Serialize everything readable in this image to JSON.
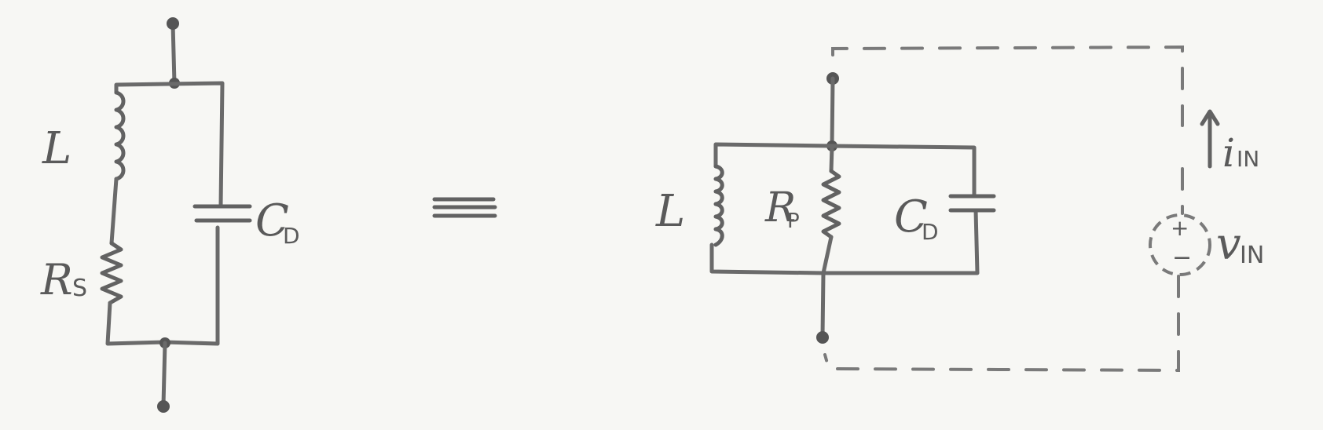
{
  "left_circuit": {
    "inductor_label": "L",
    "resistor_label": "R",
    "resistor_sub": "S",
    "capacitor_label": "C",
    "capacitor_sub": "D"
  },
  "equivalence_symbol": "≡",
  "right_circuit": {
    "inductor_label": "L",
    "resistor_label": "R",
    "resistor_sub": "P",
    "capacitor_label": "C",
    "capacitor_sub": "D",
    "current_label": "i",
    "current_sub": "IN",
    "voltage_label": "v",
    "voltage_sub": "IN",
    "source_plus": "+",
    "source_minus": "−"
  },
  "colors": {
    "ink": "#626262",
    "paper": "#f7f7f4"
  }
}
